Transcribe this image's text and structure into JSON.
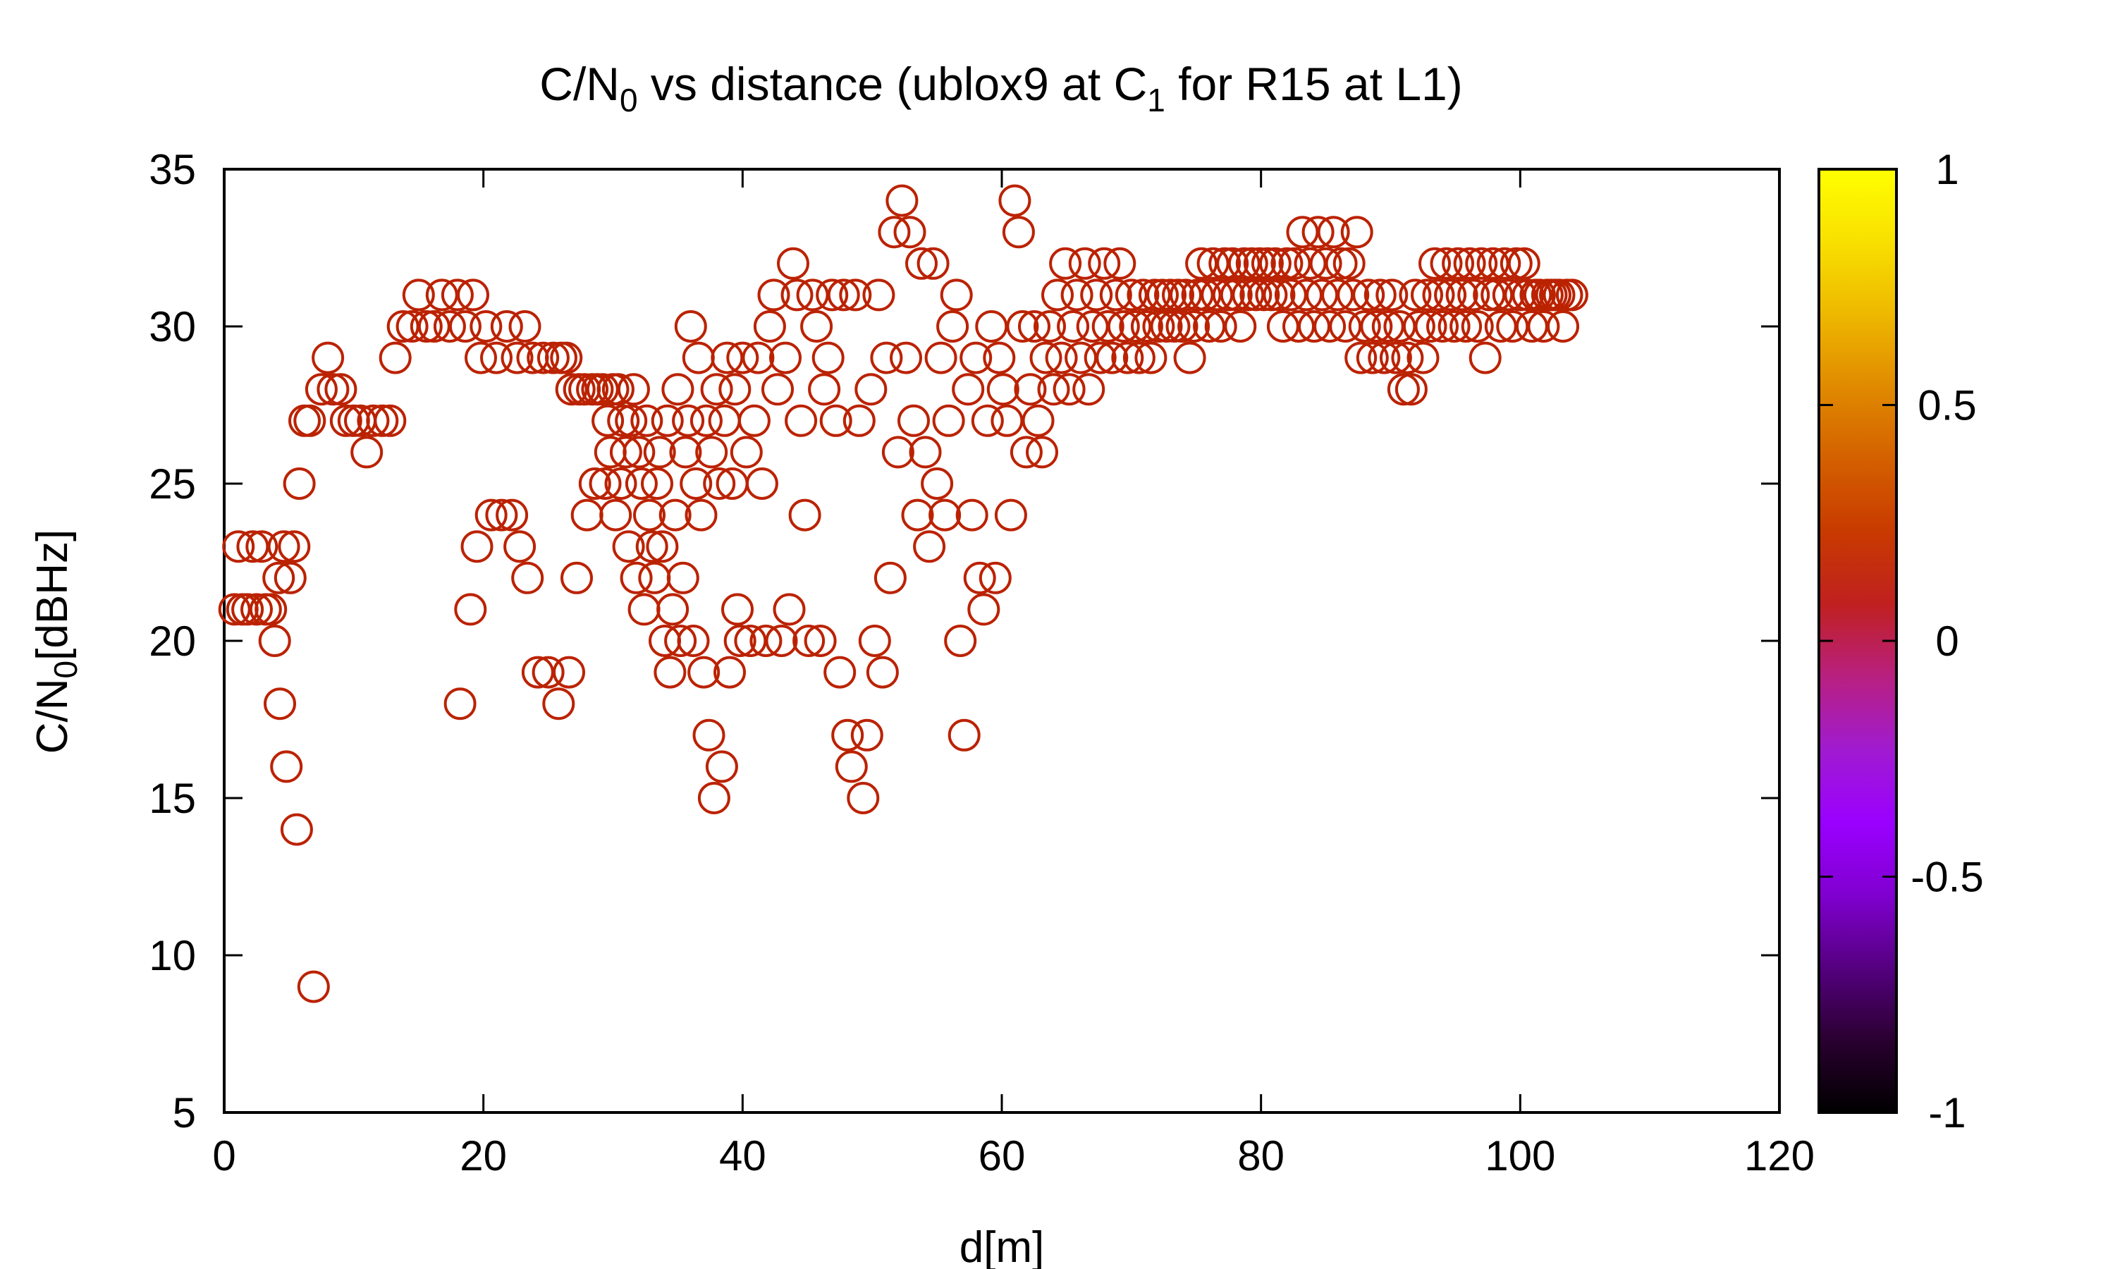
{
  "chart_data": {
    "type": "scatter",
    "title_main": "C/N",
    "title_sub0": "0",
    "title_mid": " vs distance (ublox9 at C",
    "title_sub1": "1",
    "title_end": " for R15 at L1)",
    "xlabel": "d[m]",
    "ylabel_main": "C/N",
    "ylabel_sub": "0",
    "ylabel_end": "[dBHz]",
    "xlim": [
      0,
      120
    ],
    "ylim": [
      5,
      35
    ],
    "x_ticks": [
      "0",
      "20",
      "40",
      "60",
      "80",
      "100",
      "120"
    ],
    "y_ticks": [
      "5",
      "10",
      "15",
      "20",
      "25",
      "30",
      "35"
    ],
    "colorbar": {
      "range": [
        -1,
        1
      ],
      "ticks": [
        "1",
        "0.5",
        "0",
        "-0.5",
        "-1"
      ],
      "palette": [
        "#000000",
        "#2a0030",
        "#550080",
        "#8000d0",
        "#9a00ff",
        "#a01bd0",
        "#b82080",
        "#c02020",
        "#c83a00",
        "#d46000",
        "#e08a00",
        "#eeb800",
        "#f8e000",
        "#ffff00"
      ]
    },
    "marker_color": "#bb2200",
    "points": [
      [
        0.8,
        21
      ],
      [
        1.1,
        23
      ],
      [
        1.4,
        21
      ],
      [
        1.8,
        21
      ],
      [
        2.2,
        23
      ],
      [
        2.5,
        21
      ],
      [
        2.9,
        23
      ],
      [
        3.2,
        21
      ],
      [
        3.6,
        21
      ],
      [
        3.9,
        20
      ],
      [
        4.2,
        22
      ],
      [
        4.3,
        18
      ],
      [
        4.6,
        23
      ],
      [
        4.8,
        16
      ],
      [
        5.1,
        22
      ],
      [
        5.4,
        23
      ],
      [
        5.6,
        14
      ],
      [
        5.8,
        25
      ],
      [
        6.2,
        27
      ],
      [
        6.6,
        27
      ],
      [
        6.9,
        9
      ],
      [
        7.5,
        28
      ],
      [
        8.0,
        29
      ],
      [
        8.4,
        28
      ],
      [
        9.0,
        28
      ],
      [
        9.4,
        27
      ],
      [
        10.0,
        27
      ],
      [
        10.5,
        27
      ],
      [
        11.0,
        26
      ],
      [
        11.5,
        27
      ],
      [
        12.2,
        27
      ],
      [
        12.8,
        27
      ],
      [
        13.2,
        29
      ],
      [
        13.8,
        30
      ],
      [
        14.5,
        30
      ],
      [
        15.0,
        31
      ],
      [
        15.6,
        30
      ],
      [
        16.2,
        30
      ],
      [
        16.8,
        31
      ],
      [
        17.4,
        30
      ],
      [
        18.0,
        31
      ],
      [
        18.2,
        18
      ],
      [
        18.6,
        30
      ],
      [
        19.0,
        21
      ],
      [
        19.2,
        31
      ],
      [
        19.5,
        23
      ],
      [
        19.8,
        29
      ],
      [
        20.2,
        30
      ],
      [
        20.6,
        24
      ],
      [
        21.0,
        29
      ],
      [
        21.4,
        24
      ],
      [
        21.8,
        30
      ],
      [
        22.2,
        24
      ],
      [
        22.6,
        29
      ],
      [
        22.8,
        23
      ],
      [
        23.2,
        30
      ],
      [
        23.4,
        22
      ],
      [
        23.8,
        29
      ],
      [
        24.2,
        19
      ],
      [
        24.6,
        29
      ],
      [
        25.0,
        19
      ],
      [
        25.4,
        29
      ],
      [
        25.8,
        18
      ],
      [
        26.0,
        29
      ],
      [
        26.4,
        29
      ],
      [
        26.6,
        19
      ],
      [
        26.8,
        28
      ],
      [
        27.2,
        22
      ],
      [
        27.4,
        28
      ],
      [
        27.8,
        28
      ],
      [
        28.0,
        24
      ],
      [
        28.4,
        28
      ],
      [
        28.6,
        25
      ],
      [
        28.8,
        28
      ],
      [
        29.2,
        28
      ],
      [
        29.4,
        25
      ],
      [
        29.6,
        27
      ],
      [
        29.8,
        26
      ],
      [
        30.0,
        28
      ],
      [
        30.2,
        24
      ],
      [
        30.4,
        28
      ],
      [
        30.6,
        25
      ],
      [
        30.8,
        27
      ],
      [
        31.0,
        26
      ],
      [
        31.2,
        23
      ],
      [
        31.4,
        27
      ],
      [
        31.6,
        28
      ],
      [
        31.8,
        22
      ],
      [
        32.0,
        26
      ],
      [
        32.2,
        25
      ],
      [
        32.4,
        21
      ],
      [
        32.6,
        27
      ],
      [
        32.8,
        24
      ],
      [
        33.0,
        23
      ],
      [
        33.2,
        22
      ],
      [
        33.4,
        25
      ],
      [
        33.6,
        26
      ],
      [
        33.8,
        23
      ],
      [
        34.0,
        20
      ],
      [
        34.2,
        27
      ],
      [
        34.4,
        19
      ],
      [
        34.6,
        21
      ],
      [
        34.8,
        24
      ],
      [
        35.0,
        28
      ],
      [
        35.2,
        20
      ],
      [
        35.4,
        22
      ],
      [
        35.6,
        26
      ],
      [
        35.8,
        27
      ],
      [
        36.0,
        30
      ],
      [
        36.2,
        20
      ],
      [
        36.4,
        25
      ],
      [
        36.6,
        29
      ],
      [
        36.8,
        24
      ],
      [
        37.0,
        19
      ],
      [
        37.2,
        27
      ],
      [
        37.4,
        17
      ],
      [
        37.6,
        26
      ],
      [
        37.8,
        15
      ],
      [
        38.0,
        28
      ],
      [
        38.2,
        25
      ],
      [
        38.4,
        16
      ],
      [
        38.6,
        27
      ],
      [
        38.8,
        29
      ],
      [
        39.0,
        19
      ],
      [
        39.2,
        25
      ],
      [
        39.4,
        28
      ],
      [
        39.6,
        21
      ],
      [
        39.8,
        20
      ],
      [
        40.0,
        29
      ],
      [
        40.3,
        26
      ],
      [
        40.6,
        20
      ],
      [
        40.9,
        27
      ],
      [
        41.2,
        29
      ],
      [
        41.5,
        25
      ],
      [
        41.8,
        20
      ],
      [
        42.1,
        30
      ],
      [
        42.4,
        31
      ],
      [
        42.7,
        28
      ],
      [
        43.0,
        20
      ],
      [
        43.3,
        29
      ],
      [
        43.6,
        21
      ],
      [
        43.9,
        32
      ],
      [
        44.2,
        31
      ],
      [
        44.5,
        27
      ],
      [
        44.8,
        24
      ],
      [
        45.1,
        20
      ],
      [
        45.4,
        31
      ],
      [
        45.7,
        30
      ],
      [
        46.0,
        20
      ],
      [
        46.3,
        28
      ],
      [
        46.6,
        29
      ],
      [
        46.9,
        31
      ],
      [
        47.2,
        27
      ],
      [
        47.5,
        19
      ],
      [
        47.8,
        31
      ],
      [
        48.1,
        17
      ],
      [
        48.4,
        16
      ],
      [
        48.7,
        31
      ],
      [
        49.0,
        27
      ],
      [
        49.3,
        15
      ],
      [
        49.6,
        17
      ],
      [
        49.9,
        28
      ],
      [
        50.2,
        20
      ],
      [
        50.5,
        31
      ],
      [
        50.8,
        19
      ],
      [
        51.1,
        29
      ],
      [
        51.4,
        22
      ],
      [
        51.7,
        33
      ],
      [
        52.0,
        26
      ],
      [
        52.3,
        34
      ],
      [
        52.6,
        29
      ],
      [
        52.9,
        33
      ],
      [
        53.2,
        27
      ],
      [
        53.5,
        24
      ],
      [
        53.8,
        32
      ],
      [
        54.1,
        26
      ],
      [
        54.4,
        23
      ],
      [
        54.7,
        32
      ],
      [
        55.0,
        25
      ],
      [
        55.3,
        29
      ],
      [
        55.6,
        24
      ],
      [
        55.9,
        27
      ],
      [
        56.2,
        30
      ],
      [
        56.5,
        31
      ],
      [
        56.8,
        20
      ],
      [
        57.1,
        17
      ],
      [
        57.4,
        28
      ],
      [
        57.7,
        24
      ],
      [
        58.0,
        29
      ],
      [
        58.3,
        22
      ],
      [
        58.6,
        21
      ],
      [
        58.9,
        27
      ],
      [
        59.2,
        30
      ],
      [
        59.5,
        22
      ],
      [
        59.8,
        29
      ],
      [
        60.1,
        28
      ],
      [
        60.4,
        27
      ],
      [
        60.7,
        24
      ],
      [
        61.0,
        34
      ],
      [
        61.3,
        33
      ],
      [
        61.6,
        30
      ],
      [
        61.9,
        26
      ],
      [
        62.2,
        28
      ],
      [
        62.5,
        30
      ],
      [
        62.8,
        27
      ],
      [
        63.1,
        26
      ],
      [
        63.4,
        29
      ],
      [
        63.7,
        30
      ],
      [
        64.0,
        28
      ],
      [
        64.3,
        31
      ],
      [
        64.6,
        29
      ],
      [
        64.9,
        32
      ],
      [
        65.2,
        28
      ],
      [
        65.5,
        30
      ],
      [
        65.8,
        31
      ],
      [
        66.1,
        29
      ],
      [
        66.4,
        32
      ],
      [
        66.7,
        28
      ],
      [
        67.0,
        30
      ],
      [
        67.3,
        31
      ],
      [
        67.6,
        29
      ],
      [
        67.9,
        32
      ],
      [
        68.2,
        30
      ],
      [
        68.5,
        29
      ],
      [
        68.8,
        31
      ],
      [
        69.1,
        32
      ],
      [
        69.4,
        30
      ],
      [
        69.7,
        29
      ],
      [
        70.0,
        31
      ],
      [
        70.3,
        30
      ],
      [
        70.6,
        29
      ],
      [
        70.9,
        31
      ],
      [
        71.2,
        30
      ],
      [
        71.5,
        29
      ],
      [
        71.8,
        31
      ],
      [
        72.1,
        30
      ],
      [
        72.4,
        31
      ],
      [
        72.7,
        30
      ],
      [
        73.0,
        31
      ],
      [
        73.3,
        30
      ],
      [
        73.6,
        31
      ],
      [
        73.9,
        30
      ],
      [
        74.2,
        31
      ],
      [
        74.5,
        29
      ],
      [
        74.8,
        30
      ],
      [
        75.1,
        31
      ],
      [
        75.4,
        32
      ],
      [
        75.7,
        31
      ],
      [
        76.0,
        30
      ],
      [
        76.3,
        32
      ],
      [
        76.6,
        31
      ],
      [
        76.9,
        30
      ],
      [
        77.2,
        32
      ],
      [
        77.5,
        31
      ],
      [
        77.8,
        32
      ],
      [
        78.1,
        31
      ],
      [
        78.4,
        30
      ],
      [
        78.7,
        32
      ],
      [
        79.0,
        31
      ],
      [
        79.3,
        32
      ],
      [
        79.6,
        31
      ],
      [
        79.9,
        32
      ],
      [
        80.2,
        31
      ],
      [
        80.5,
        32
      ],
      [
        80.8,
        31
      ],
      [
        81.1,
        32
      ],
      [
        81.4,
        31
      ],
      [
        81.7,
        30
      ],
      [
        82.0,
        32
      ],
      [
        82.3,
        31
      ],
      [
        82.6,
        32
      ],
      [
        82.9,
        30
      ],
      [
        83.2,
        33
      ],
      [
        83.5,
        31
      ],
      [
        83.8,
        32
      ],
      [
        84.1,
        30
      ],
      [
        84.4,
        33
      ],
      [
        84.7,
        31
      ],
      [
        85.0,
        32
      ],
      [
        85.3,
        30
      ],
      [
        85.6,
        33
      ],
      [
        85.9,
        31
      ],
      [
        86.2,
        32
      ],
      [
        86.5,
        30
      ],
      [
        86.8,
        32
      ],
      [
        87.1,
        31
      ],
      [
        87.4,
        33
      ],
      [
        87.7,
        29
      ],
      [
        88.0,
        30
      ],
      [
        88.3,
        31
      ],
      [
        88.6,
        29
      ],
      [
        88.9,
        30
      ],
      [
        89.2,
        31
      ],
      [
        89.5,
        29
      ],
      [
        89.8,
        30
      ],
      [
        90.1,
        31
      ],
      [
        90.4,
        29
      ],
      [
        90.7,
        30
      ],
      [
        91.0,
        28
      ],
      [
        91.3,
        29
      ],
      [
        91.6,
        28
      ],
      [
        91.9,
        31
      ],
      [
        92.2,
        30
      ],
      [
        92.5,
        29
      ],
      [
        92.8,
        31
      ],
      [
        93.1,
        30
      ],
      [
        93.4,
        32
      ],
      [
        93.7,
        31
      ],
      [
        94.0,
        30
      ],
      [
        94.3,
        32
      ],
      [
        94.6,
        31
      ],
      [
        94.9,
        30
      ],
      [
        95.2,
        32
      ],
      [
        95.5,
        31
      ],
      [
        95.8,
        30
      ],
      [
        96.1,
        32
      ],
      [
        96.4,
        31
      ],
      [
        96.7,
        30
      ],
      [
        97.0,
        32
      ],
      [
        97.3,
        29
      ],
      [
        97.6,
        31
      ],
      [
        97.9,
        32
      ],
      [
        98.2,
        31
      ],
      [
        98.5,
        30
      ],
      [
        98.8,
        32
      ],
      [
        99.1,
        31
      ],
      [
        99.4,
        30
      ],
      [
        99.7,
        32
      ],
      [
        100.0,
        31
      ],
      [
        100.3,
        32
      ],
      [
        100.6,
        31
      ],
      [
        100.9,
        30
      ],
      [
        101.2,
        31
      ],
      [
        101.5,
        31
      ],
      [
        101.8,
        30
      ],
      [
        102.1,
        31
      ],
      [
        102.4,
        31
      ],
      [
        102.7,
        31
      ],
      [
        103.0,
        31
      ],
      [
        103.3,
        30
      ],
      [
        103.6,
        31
      ],
      [
        104.0,
        31
      ]
    ]
  }
}
